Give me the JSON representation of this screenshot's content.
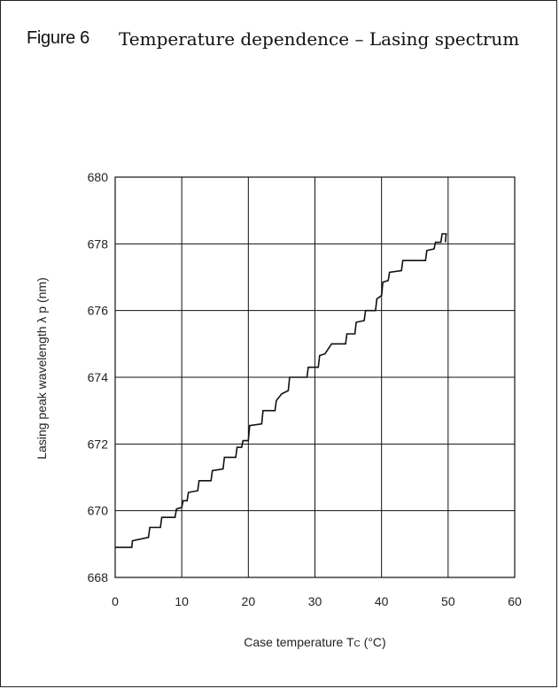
{
  "figure": {
    "label": "Figure 6",
    "title": "Temperature dependence – Lasing spectrum"
  },
  "chart_data": {
    "type": "line",
    "xlabel_main": "Case temperature T",
    "xlabel_sub": "C",
    "xlabel_unit": " (°C)",
    "ylabel": "Lasing peak wavelength λ p (nm)",
    "xlim": [
      0,
      60
    ],
    "ylim": [
      668,
      680
    ],
    "xticks": [
      0,
      10,
      20,
      30,
      40,
      50,
      60
    ],
    "yticks": [
      668,
      670,
      672,
      674,
      676,
      678,
      680
    ],
    "grid": true,
    "series": [
      {
        "style": "step",
        "color": "#111111",
        "points": [
          [
            0,
            668.9
          ],
          [
            2.5,
            668.9
          ],
          [
            2.6,
            669.1
          ],
          [
            5,
            669.2
          ],
          [
            5.2,
            669.5
          ],
          [
            6.8,
            669.5
          ],
          [
            7,
            669.8
          ],
          [
            9,
            669.8
          ],
          [
            9.2,
            670.05
          ],
          [
            10,
            670.1
          ],
          [
            10.2,
            670.3
          ],
          [
            10.8,
            670.3
          ],
          [
            11,
            670.55
          ],
          [
            12.4,
            670.6
          ],
          [
            12.6,
            670.9
          ],
          [
            14.4,
            670.9
          ],
          [
            14.6,
            671.2
          ],
          [
            16.2,
            671.25
          ],
          [
            16.4,
            671.6
          ],
          [
            18.1,
            671.6
          ],
          [
            18.3,
            671.9
          ],
          [
            19,
            671.9
          ],
          [
            19.2,
            672.1
          ],
          [
            20,
            672.1
          ],
          [
            20.2,
            672.55
          ],
          [
            22,
            672.6
          ],
          [
            22.2,
            673
          ],
          [
            24,
            673
          ],
          [
            24.2,
            673.3
          ],
          [
            25,
            673.5
          ],
          [
            26,
            673.6
          ],
          [
            26.2,
            674
          ],
          [
            28.8,
            674
          ],
          [
            29,
            674.3
          ],
          [
            30.5,
            674.3
          ],
          [
            30.7,
            674.65
          ],
          [
            31.5,
            674.7
          ],
          [
            32.5,
            675
          ],
          [
            34.6,
            675
          ],
          [
            34.8,
            675.3
          ],
          [
            36,
            675.3
          ],
          [
            36.2,
            675.65
          ],
          [
            37.4,
            675.7
          ],
          [
            37.6,
            676
          ],
          [
            39.1,
            676
          ],
          [
            39.3,
            676.35
          ],
          [
            40,
            676.45
          ],
          [
            40.2,
            676.85
          ],
          [
            41,
            676.9
          ],
          [
            41.2,
            677.15
          ],
          [
            43,
            677.2
          ],
          [
            43.2,
            677.5
          ],
          [
            46.6,
            677.5
          ],
          [
            46.8,
            677.8
          ],
          [
            47.9,
            677.85
          ],
          [
            48.1,
            678.05
          ],
          [
            48.9,
            678.05
          ],
          [
            49.1,
            678.3
          ],
          [
            49.7,
            678.3
          ],
          [
            49.6,
            678.05
          ]
        ]
      }
    ]
  }
}
